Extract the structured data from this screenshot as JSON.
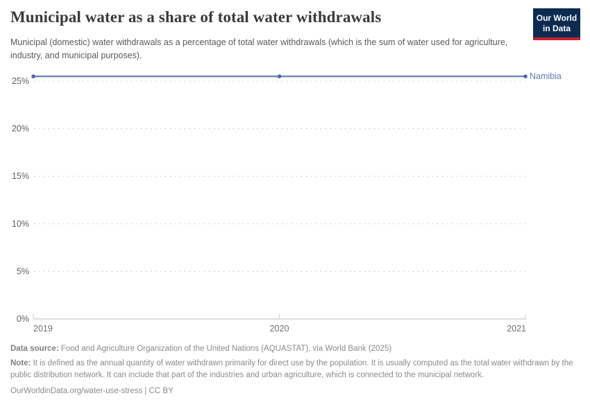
{
  "chart_data": {
    "type": "line",
    "title": "Municipal water as a share of total water withdrawals",
    "subtitle": "Municipal (domestic) water withdrawals as a percentage of total water withdrawals (which is the sum of water used for agriculture, industry, and municipal purposes).",
    "x": [
      2019,
      2020,
      2021
    ],
    "series": [
      {
        "name": "Namibia",
        "values": [
          25.5,
          25.5,
          25.5
        ],
        "color": "#7289b5",
        "marker_color": "#51699f",
        "label_color": "#5e7bb0"
      }
    ],
    "unit": "%",
    "yticks": [
      0,
      5,
      10,
      15,
      20,
      25
    ],
    "ylim": [
      0,
      25.9
    ],
    "xlabel": "",
    "ylabel": "",
    "grid": "horizontal-dashed",
    "legend": "series-label-right"
  },
  "logo": {
    "line1": "Our World",
    "line2": "in Data",
    "bg_color": "#0d2b50",
    "bar_color": "#c32330"
  },
  "footer": {
    "datasource_label": "Data source:",
    "datasource_text": " Food and Agriculture Organization of the United Nations (AQUASTAT), via World Bank (2025)",
    "note_label": "Note:",
    "note_text": " It is defined as the annual quantity of water withdrawn primarily for direct use by the population. It is usually computed as the total water withdrawn by the public distribution network. It can include that part of the industries and urban agriculture, which is connected to the municipal network.",
    "link_text": "OurWorldinData.org/water-use-stress | CC BY"
  }
}
